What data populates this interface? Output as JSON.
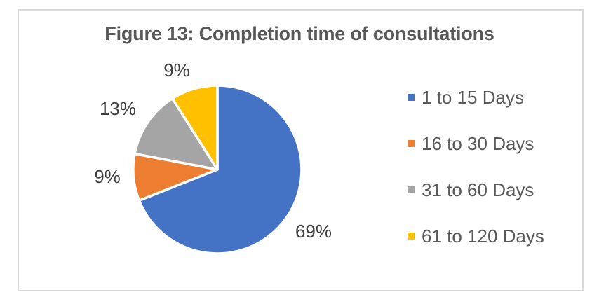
{
  "chart_data": {
    "type": "pie",
    "title": "Figure 13: Completion time of consultations",
    "start_angle_deg": 0,
    "direction": "clockwise",
    "legend_position": "right",
    "label_format": "percent",
    "slices": [
      {
        "label": "1 to 15 Days",
        "value": 69,
        "display": "69%",
        "color": "#4472C4"
      },
      {
        "label": "16 to 30 Days",
        "value": 9,
        "display": "9%",
        "color": "#ED7D31"
      },
      {
        "label": "31 to 60 Days",
        "value": 13,
        "display": "13%",
        "color": "#A5A5A5"
      },
      {
        "label": "61 to 120 Days",
        "value": 9,
        "display": "9%",
        "color": "#FFC000"
      }
    ],
    "colors": {
      "title_text": "#595959",
      "data_label_text": "#404040",
      "legend_text": "#595959",
      "frame_border": "#D9D9D9",
      "background": "#FFFFFF"
    }
  }
}
